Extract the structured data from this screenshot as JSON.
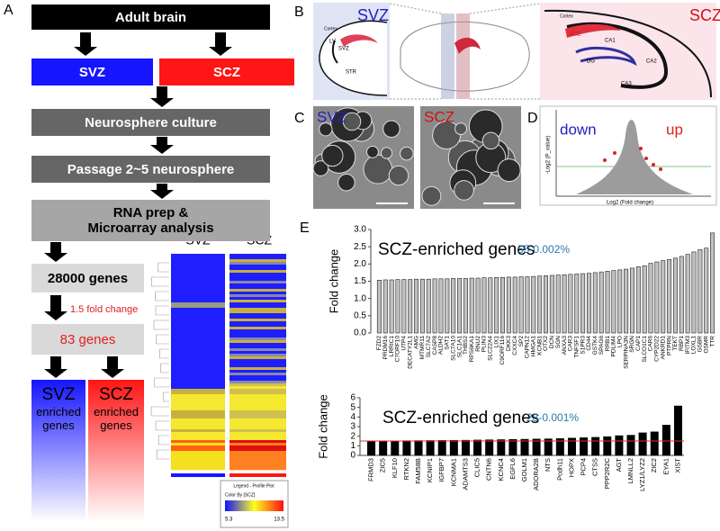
{
  "panel_a": {
    "label": "A",
    "steps": [
      "Adult brain",
      "Neurosphere culture",
      "Passage 2~5 neurosphere",
      "RNA prep & Microarray analysis"
    ],
    "regions": [
      "SVZ",
      "SCZ"
    ],
    "gene_count": "28000 genes",
    "filter": "1.5 fold change",
    "filtered_count": "83 genes",
    "outcomes": [
      {
        "region": "SVZ",
        "text": "enriched genes"
      },
      {
        "region": "SCZ",
        "text": "enriched genes"
      }
    ],
    "heatmap": {
      "columns": [
        "SVZ",
        "SCZ"
      ],
      "legend_title": "Legend - Profile Plot",
      "color_by": "Color By [SCZ]",
      "range": [
        5.3,
        13.5
      ]
    }
  },
  "panel_b": {
    "label": "B",
    "left": {
      "region": "SVZ",
      "labels": [
        "Cortex",
        "LV",
        "SVZ",
        "STR"
      ]
    },
    "right": {
      "region": "SCZ",
      "labels": [
        "Cortex",
        "SCZ",
        "CA1",
        "DG",
        "CA2",
        "CA3"
      ]
    }
  },
  "panel_c": {
    "label": "C",
    "images": [
      "SVZ",
      "SCZ"
    ]
  },
  "panel_d": {
    "label": "D",
    "left_text": "down",
    "right_text": "up",
    "y_label": "-Log2 (P_value)",
    "x_label": "Log2 (Fold change)"
  },
  "panel_e": {
    "label": "E"
  },
  "chart_data": [
    {
      "type": "bar",
      "title": "SCZ-enriched genes",
      "subtitle": "55-0.002%",
      "y_label": "Fold change",
      "categories": [
        "FZD2",
        "PRDM16",
        "LRRIC1",
        "C7ORF10",
        "UTP4",
        "DECATY2L1",
        "AMG",
        "MTMR11",
        "SLC7A2",
        "CASP8",
        "ALDH2",
        "SAT1",
        "SLC7A10",
        "SLC1A1",
        "THBS2",
        "RPS6KA1",
        "RNU2",
        "PLIN3",
        "SLC22A4",
        "LIX1",
        "C9ORF116",
        "DKK3",
        "CXXC4",
        "SP2",
        "CAPN12",
        "HMGA1",
        "KCNB1",
        "OTX2",
        "DCN",
        "SGN",
        "ANXA3",
        "CAR3",
        "TNFSF1",
        "S1PR3",
        "CD44",
        "GSTK4",
        "SPAG6",
        "RRB1",
        "PDLIM4",
        "LPO",
        "SERPINA3N",
        "SRGN",
        "CAP1",
        "SLCO1C1",
        "CAR6",
        "CYP2D22",
        "ANKRD1",
        "PTPRN",
        "TEKT",
        "RBP1",
        "IFITM3",
        "LOXL1",
        "GSBR",
        "OSMR",
        "TTR"
      ],
      "values": [
        1.53,
        1.54,
        1.54,
        1.55,
        1.55,
        1.55,
        1.56,
        1.56,
        1.56,
        1.57,
        1.57,
        1.57,
        1.58,
        1.58,
        1.58,
        1.59,
        1.59,
        1.6,
        1.6,
        1.61,
        1.61,
        1.62,
        1.62,
        1.63,
        1.63,
        1.64,
        1.65,
        1.66,
        1.67,
        1.68,
        1.69,
        1.7,
        1.71,
        1.72,
        1.73,
        1.75,
        1.77,
        1.79,
        1.81,
        1.83,
        1.85,
        1.88,
        1.92,
        1.95,
        2.02,
        2.06,
        2.1,
        2.13,
        2.17,
        2.22,
        2.28,
        2.35,
        2.42,
        2.46,
        2.9
      ],
      "color": "#c0c0c0",
      "edge_color": "#222222",
      "ylim": [
        0,
        3
      ],
      "yticks": [
        {
          "value": 0,
          "label": "0.0"
        },
        0.5,
        {
          "value": 1,
          "label": "1.0"
        },
        1.5,
        {
          "value": 2,
          "label": "2.0"
        },
        2.5,
        {
          "value": 3,
          "label": "3.0"
        }
      ]
    },
    {
      "type": "bar",
      "title": "SCZ-enriched genes",
      "subtitle": "28-0.001%",
      "y_label": "Fold change",
      "categories": [
        "FRMD3",
        "ZIC5",
        "KLF10",
        "RTKN2",
        "FAM58B",
        "KCNIP1",
        "IGFBP7",
        "KCNMA1",
        "ADAMTS3",
        "CLIC5",
        "CNTN6",
        "KCNC4",
        "EGFL6",
        "GOLM1",
        "ADORA2B",
        "NTS",
        "Pcdh11",
        "HOPX",
        "PCP4",
        "CTSS",
        "PPP2R2C",
        "AGT",
        "LMNLL2",
        "LYZ1/LYZ2",
        "ZIC2",
        "EYA1",
        "XIST"
      ],
      "values": [
        1.5,
        1.52,
        1.52,
        1.53,
        1.54,
        1.55,
        1.56,
        1.57,
        1.58,
        1.6,
        1.62,
        1.64,
        1.66,
        1.68,
        1.7,
        1.72,
        1.75,
        1.8,
        1.84,
        1.88,
        1.95,
        2.05,
        2.1,
        2.35,
        2.45,
        3.15,
        5.15
      ],
      "color": "#000000",
      "edge_color": "#000000",
      "threshold": 1.5,
      "threshold_color": "#e03030",
      "ylim": [
        0,
        6
      ],
      "yticks": [
        0,
        1,
        2,
        3,
        4,
        5,
        6
      ]
    }
  ]
}
